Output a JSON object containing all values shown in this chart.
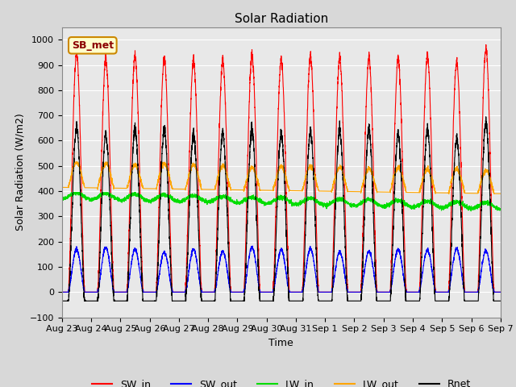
{
  "title": "Solar Radiation",
  "xlabel": "Time",
  "ylabel": "Solar Radiation (W/m2)",
  "ylim": [
    -100,
    1050
  ],
  "yticks": [
    -100,
    0,
    100,
    200,
    300,
    400,
    500,
    600,
    700,
    800,
    900,
    1000
  ],
  "plot_bg_color": "#e8e8e8",
  "fig_bg_color": "#d8d8d8",
  "grid_color": "white",
  "legend_label": "SB_met",
  "line_colors": {
    "SW_in": "red",
    "SW_out": "blue",
    "LW_in": "#00dd00",
    "LW_out": "orange",
    "Rnet": "black"
  },
  "date_labels": [
    "Aug 23",
    "Aug 24",
    "Aug 25",
    "Aug 26",
    "Aug 27",
    "Aug 28",
    "Aug 29",
    "Aug 30",
    "Aug 31",
    "Sep 1",
    "Sep 2",
    "Sep 3",
    "Sep 4",
    "Sep 5",
    "Sep 6",
    "Sep 7"
  ],
  "n_days": 15,
  "points_per_day": 288
}
